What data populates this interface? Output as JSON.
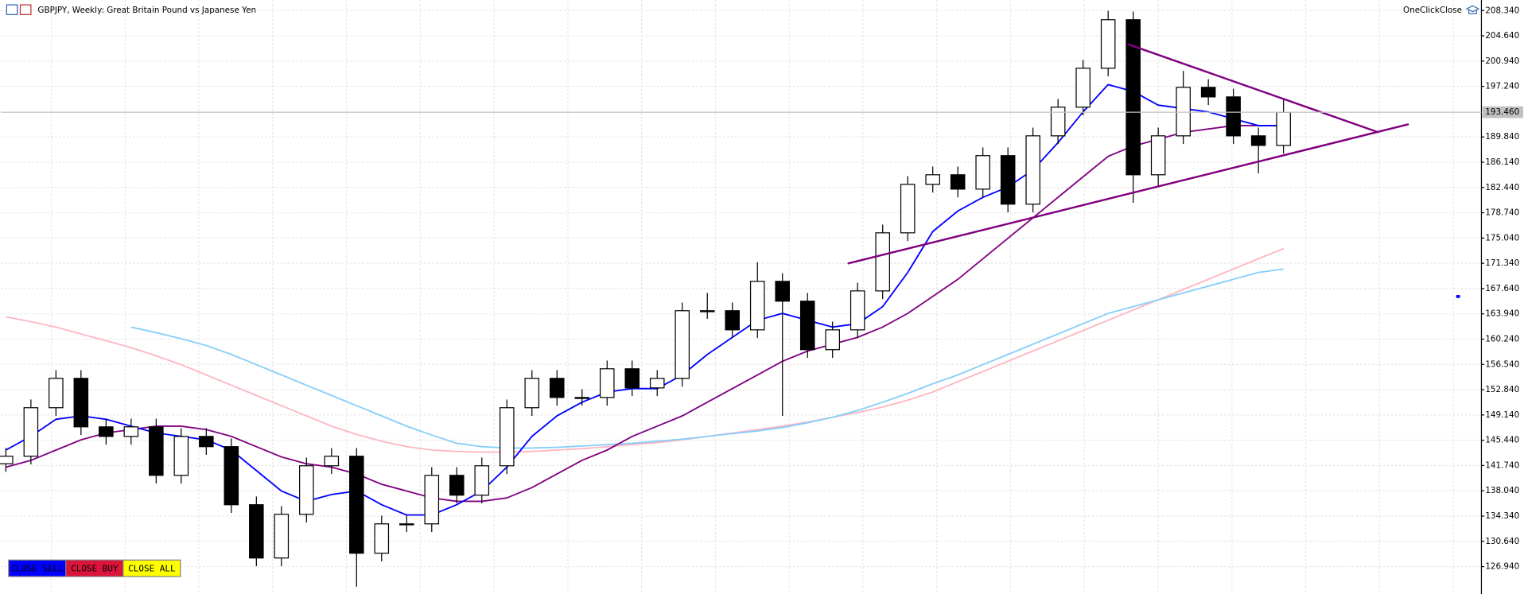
{
  "chart_data": {
    "type": "candlestick",
    "title": "GBPJPY, Weekly:  Great Britain Pound vs Japanese Yen",
    "indicator_label": "OneClickClose",
    "buttons": [
      "CLOSE SELL",
      "CLOSE BUY",
      "CLOSE ALL"
    ],
    "button_colors": [
      "#0000ff",
      "#dc143c",
      "#ffff00"
    ],
    "current_price": {
      "value": 193.46,
      "label": "193.460"
    },
    "ylim": [
      123.5,
      209.6
    ],
    "xlim": [
      -0.2,
      58.9
    ],
    "grid": true,
    "yticks": [
      {
        "value": 208.34,
        "label": "208.340"
      },
      {
        "value": 204.64,
        "label": "204.640"
      },
      {
        "value": 200.94,
        "label": "200.940"
      },
      {
        "value": 197.24,
        "label": "197.240"
      },
      {
        "value": 189.84,
        "label": "189.840"
      },
      {
        "value": 186.14,
        "label": "186.140"
      },
      {
        "value": 182.44,
        "label": "182.440"
      },
      {
        "value": 178.74,
        "label": "178.740"
      },
      {
        "value": 175.04,
        "label": "175.040"
      },
      {
        "value": 171.34,
        "label": "171.340"
      },
      {
        "value": 167.64,
        "label": "167.640"
      },
      {
        "value": 163.94,
        "label": "163.940"
      },
      {
        "value": 160.24,
        "label": "160.240"
      },
      {
        "value": 156.54,
        "label": "156.540"
      },
      {
        "value": 152.84,
        "label": "152.840"
      },
      {
        "value": 149.14,
        "label": "149.140"
      },
      {
        "value": 145.44,
        "label": "145.440"
      },
      {
        "value": 141.74,
        "label": "141.740"
      },
      {
        "value": 138.04,
        "label": "138.040"
      },
      {
        "value": 134.34,
        "label": "134.340"
      },
      {
        "value": 130.64,
        "label": "130.640"
      },
      {
        "value": 126.94,
        "label": "126.940"
      }
    ],
    "open": [
      142,
      143.1,
      150.2,
      154.5,
      147.4,
      146,
      147.4,
      140.3,
      146,
      144.5,
      136,
      128.2,
      134.6,
      141.7,
      143.1,
      128.9,
      133.2,
      133.2,
      140.3,
      137.4,
      141.7,
      150.2,
      154.5,
      151.7,
      151.7,
      155.9,
      153.1,
      154.5,
      164.4,
      164.4,
      161.6,
      168.7,
      165.8,
      158.7,
      161.6,
      167.3,
      175.8,
      182.9,
      184.3,
      182.2,
      187.1,
      180,
      190,
      194.2,
      199.9,
      207,
      184.3,
      190,
      197.1,
      195.7,
      190,
      188.6
    ],
    "high": [
      144.3,
      151.4,
      155.7,
      155.7,
      148.6,
      148.6,
      148.6,
      147.2,
      147.2,
      145.7,
      137.2,
      135.8,
      142.9,
      144.3,
      144.3,
      134.4,
      134.4,
      141.5,
      141.5,
      142.9,
      151.4,
      155.7,
      155.7,
      152.9,
      157.1,
      157.1,
      155.7,
      165.6,
      167,
      165.6,
      171.5,
      169.9,
      167,
      162.8,
      168.5,
      177,
      184.1,
      185.5,
      185.5,
      188.3,
      188.3,
      191.2,
      195.4,
      201.1,
      208.3,
      208.2,
      191.2,
      199.5,
      198.3,
      196.9,
      191.2,
      195.4
    ],
    "low": [
      140.8,
      141.9,
      149,
      146.2,
      144.8,
      144.8,
      139.1,
      139.1,
      143.3,
      134.8,
      127,
      127,
      133.4,
      140.5,
      124,
      127.7,
      132,
      132,
      136.2,
      136.2,
      140.5,
      149,
      150.5,
      150.5,
      150.5,
      151.9,
      151.9,
      153.3,
      163.2,
      160.4,
      160.4,
      149,
      157.5,
      157.5,
      160.4,
      166.1,
      174.6,
      181.7,
      181,
      181,
      178.8,
      178.8,
      188.8,
      193,
      198.7,
      180.2,
      182.5,
      188.8,
      194.5,
      188.8,
      184.5,
      187.4
    ],
    "close": [
      143.1,
      150.2,
      154.5,
      147.4,
      146,
      147.4,
      140.3,
      146,
      144.5,
      136,
      128.2,
      134.6,
      141.7,
      143.1,
      128.9,
      133.2,
      133.2,
      140.3,
      137.4,
      141.7,
      150.2,
      154.5,
      151.7,
      151.7,
      155.9,
      153.1,
      154.5,
      164.4,
      164.4,
      161.6,
      168.7,
      165.8,
      158.7,
      161.6,
      167.3,
      175.8,
      182.9,
      184.3,
      182.2,
      187.1,
      180,
      190,
      194.2,
      199.9,
      207,
      184.3,
      190,
      197.1,
      195.7,
      190,
      188.6,
      193.46
    ],
    "series": [
      {
        "color": "#ffb6c1",
        "values": [
          163.5,
          162.8,
          162,
          161,
          160,
          159,
          157.8,
          156.5,
          155,
          153.5,
          152,
          150.5,
          149,
          147.5,
          146.3,
          145.3,
          144.5,
          144,
          143.8,
          143.7,
          143.7,
          143.8,
          144,
          144.2,
          144.5,
          144.8,
          145.1,
          145.5,
          146,
          146.5,
          147,
          147.5,
          148.1,
          148.8,
          149.5,
          150.3,
          151.3,
          152.5,
          154,
          155.5,
          157,
          158.5,
          160,
          161.5,
          163,
          164.5,
          166,
          167.5,
          169,
          170.5,
          172,
          173.5
        ]
      },
      {
        "color": "#87cefa",
        "values": [
          null,
          null,
          null,
          null,
          null,
          162,
          161.2,
          160.3,
          159.3,
          158,
          156.5,
          155,
          153.5,
          152,
          150.5,
          149,
          147.5,
          146.2,
          145,
          144.5,
          144.3,
          144.3,
          144.4,
          144.6,
          144.8,
          145,
          145.3,
          145.6,
          146,
          146.4,
          146.8,
          147.3,
          148,
          148.8,
          149.8,
          151,
          152.3,
          153.7,
          155,
          156.5,
          158,
          159.5,
          161,
          162.5,
          164,
          165,
          166,
          167,
          168,
          169,
          170,
          170.5
        ]
      },
      {
        "color": "#800080",
        "values": [
          141.5,
          142.5,
          144,
          145.5,
          146.5,
          147,
          147.5,
          147.5,
          147,
          146,
          144.5,
          143,
          142,
          141.5,
          140.5,
          139,
          138,
          137,
          136.5,
          136.5,
          137,
          138.5,
          140.5,
          142.5,
          144,
          146,
          147.5,
          149,
          151,
          153,
          155,
          157,
          158.5,
          159.5,
          160.5,
          162,
          164,
          166.5,
          169,
          172,
          175,
          178,
          181,
          184,
          187,
          188.5,
          189.5,
          190.5,
          191,
          191.5,
          191.5,
          191.5
        ]
      },
      {
        "color": "#0000ff",
        "values": [
          144,
          146,
          148.5,
          149,
          148.5,
          147.5,
          146.5,
          146,
          145.5,
          144,
          141,
          138,
          136.5,
          137.5,
          138,
          136,
          134.5,
          134.5,
          136,
          138,
          141.5,
          146,
          149,
          151,
          152.5,
          153,
          153,
          155,
          158,
          160.5,
          163,
          164,
          163,
          162,
          162.5,
          165,
          170,
          176,
          179,
          181,
          182.5,
          185,
          189,
          193.5,
          197.5,
          196.5,
          194.5,
          194,
          193.5,
          192.5,
          191.5,
          191.5
        ]
      }
    ],
    "trendlines": [
      {
        "color": "#800080",
        "x": [
          44.8,
          54.8
        ],
        "y": [
          203.4,
          190.5
        ]
      },
      {
        "color": "#800080",
        "x": [
          33.6,
          56
        ],
        "y": [
          171.3,
          191.7
        ]
      }
    ]
  }
}
